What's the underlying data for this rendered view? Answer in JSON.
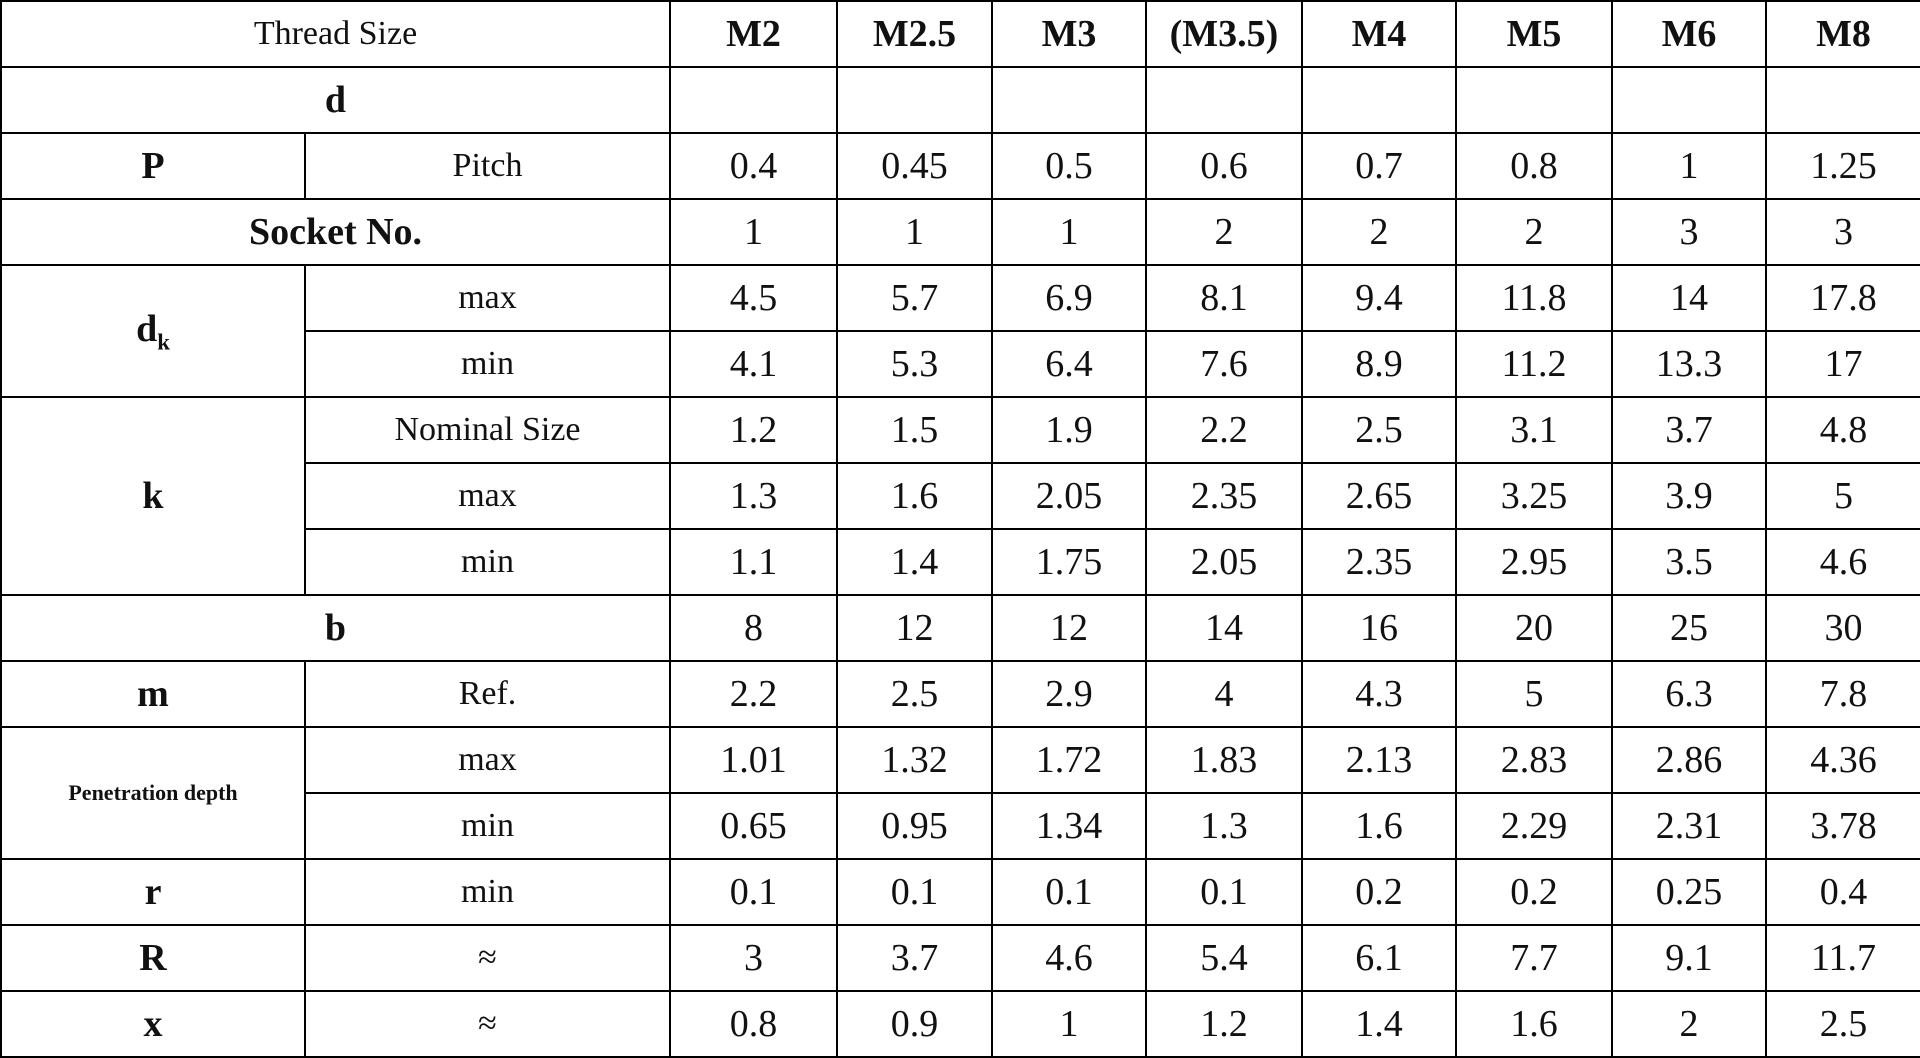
{
  "header": {
    "label": "Thread Size",
    "sizes": [
      "M2",
      "M2.5",
      "M3",
      "(M3.5)",
      "M4",
      "M5",
      "M6",
      "M8"
    ]
  },
  "groups": [
    {
      "label": "d",
      "rows": [
        {}
      ]
    },
    {
      "label": "P",
      "rows": [
        {
          "name": "Pitch",
          "values": [
            0.4,
            0.45,
            0.5,
            0.6,
            0.7,
            0.8,
            1,
            1.25
          ]
        }
      ]
    },
    {
      "label": "Socket No.",
      "rows": [
        {
          "values": [
            1,
            1,
            1,
            2,
            2,
            2,
            3,
            3
          ]
        }
      ]
    },
    {
      "label": "d",
      "label_sub": "k",
      "rows": [
        {
          "name": "max",
          "values": [
            4.5,
            5.7,
            6.9,
            8.1,
            9.4,
            11.8,
            14,
            17.8
          ]
        },
        {
          "name": "min",
          "values": [
            4.1,
            5.3,
            6.4,
            7.6,
            8.9,
            11.2,
            13.3,
            17
          ]
        }
      ]
    },
    {
      "label": "k",
      "rows": [
        {
          "name": "Nominal Size",
          "values": [
            1.2,
            1.5,
            1.9,
            2.2,
            2.5,
            3.1,
            3.7,
            4.8
          ]
        },
        {
          "name": "max",
          "values": [
            1.3,
            1.6,
            2.05,
            2.35,
            2.65,
            3.25,
            3.9,
            5
          ]
        },
        {
          "name": "min",
          "values": [
            1.1,
            1.4,
            1.75,
            2.05,
            2.35,
            2.95,
            3.5,
            4.6
          ]
        }
      ]
    },
    {
      "label": "b",
      "rows": [
        {
          "values": [
            8,
            12,
            12,
            14,
            16,
            20,
            25,
            30
          ]
        }
      ]
    },
    {
      "label": "m",
      "rows": [
        {
          "name": "Ref.",
          "values": [
            2.2,
            2.5,
            2.9,
            4,
            4.3,
            5,
            6.3,
            7.8
          ]
        }
      ]
    },
    {
      "label": "Penetration depth",
      "small": true,
      "rows": [
        {
          "name": "max",
          "values": [
            1.01,
            1.32,
            1.72,
            1.83,
            2.13,
            2.83,
            2.86,
            4.36
          ]
        },
        {
          "name": "min",
          "values": [
            0.65,
            0.95,
            1.34,
            1.3,
            1.6,
            2.29,
            2.31,
            3.78
          ]
        }
      ]
    },
    {
      "label": "r",
      "rows": [
        {
          "name": "min",
          "values": [
            0.1,
            0.1,
            0.1,
            0.1,
            0.2,
            0.2,
            0.25,
            0.4
          ]
        }
      ]
    },
    {
      "label": "R",
      "rows": [
        {
          "name": "≈",
          "values": [
            3,
            3.7,
            4.6,
            5.4,
            6.1,
            7.7,
            9.1,
            11.7
          ]
        }
      ]
    },
    {
      "label": "x",
      "rows": [
        {
          "name": "≈",
          "values": [
            0.8,
            0.9,
            1,
            1.2,
            1.4,
            1.6,
            2,
            2.5
          ]
        }
      ]
    }
  ]
}
